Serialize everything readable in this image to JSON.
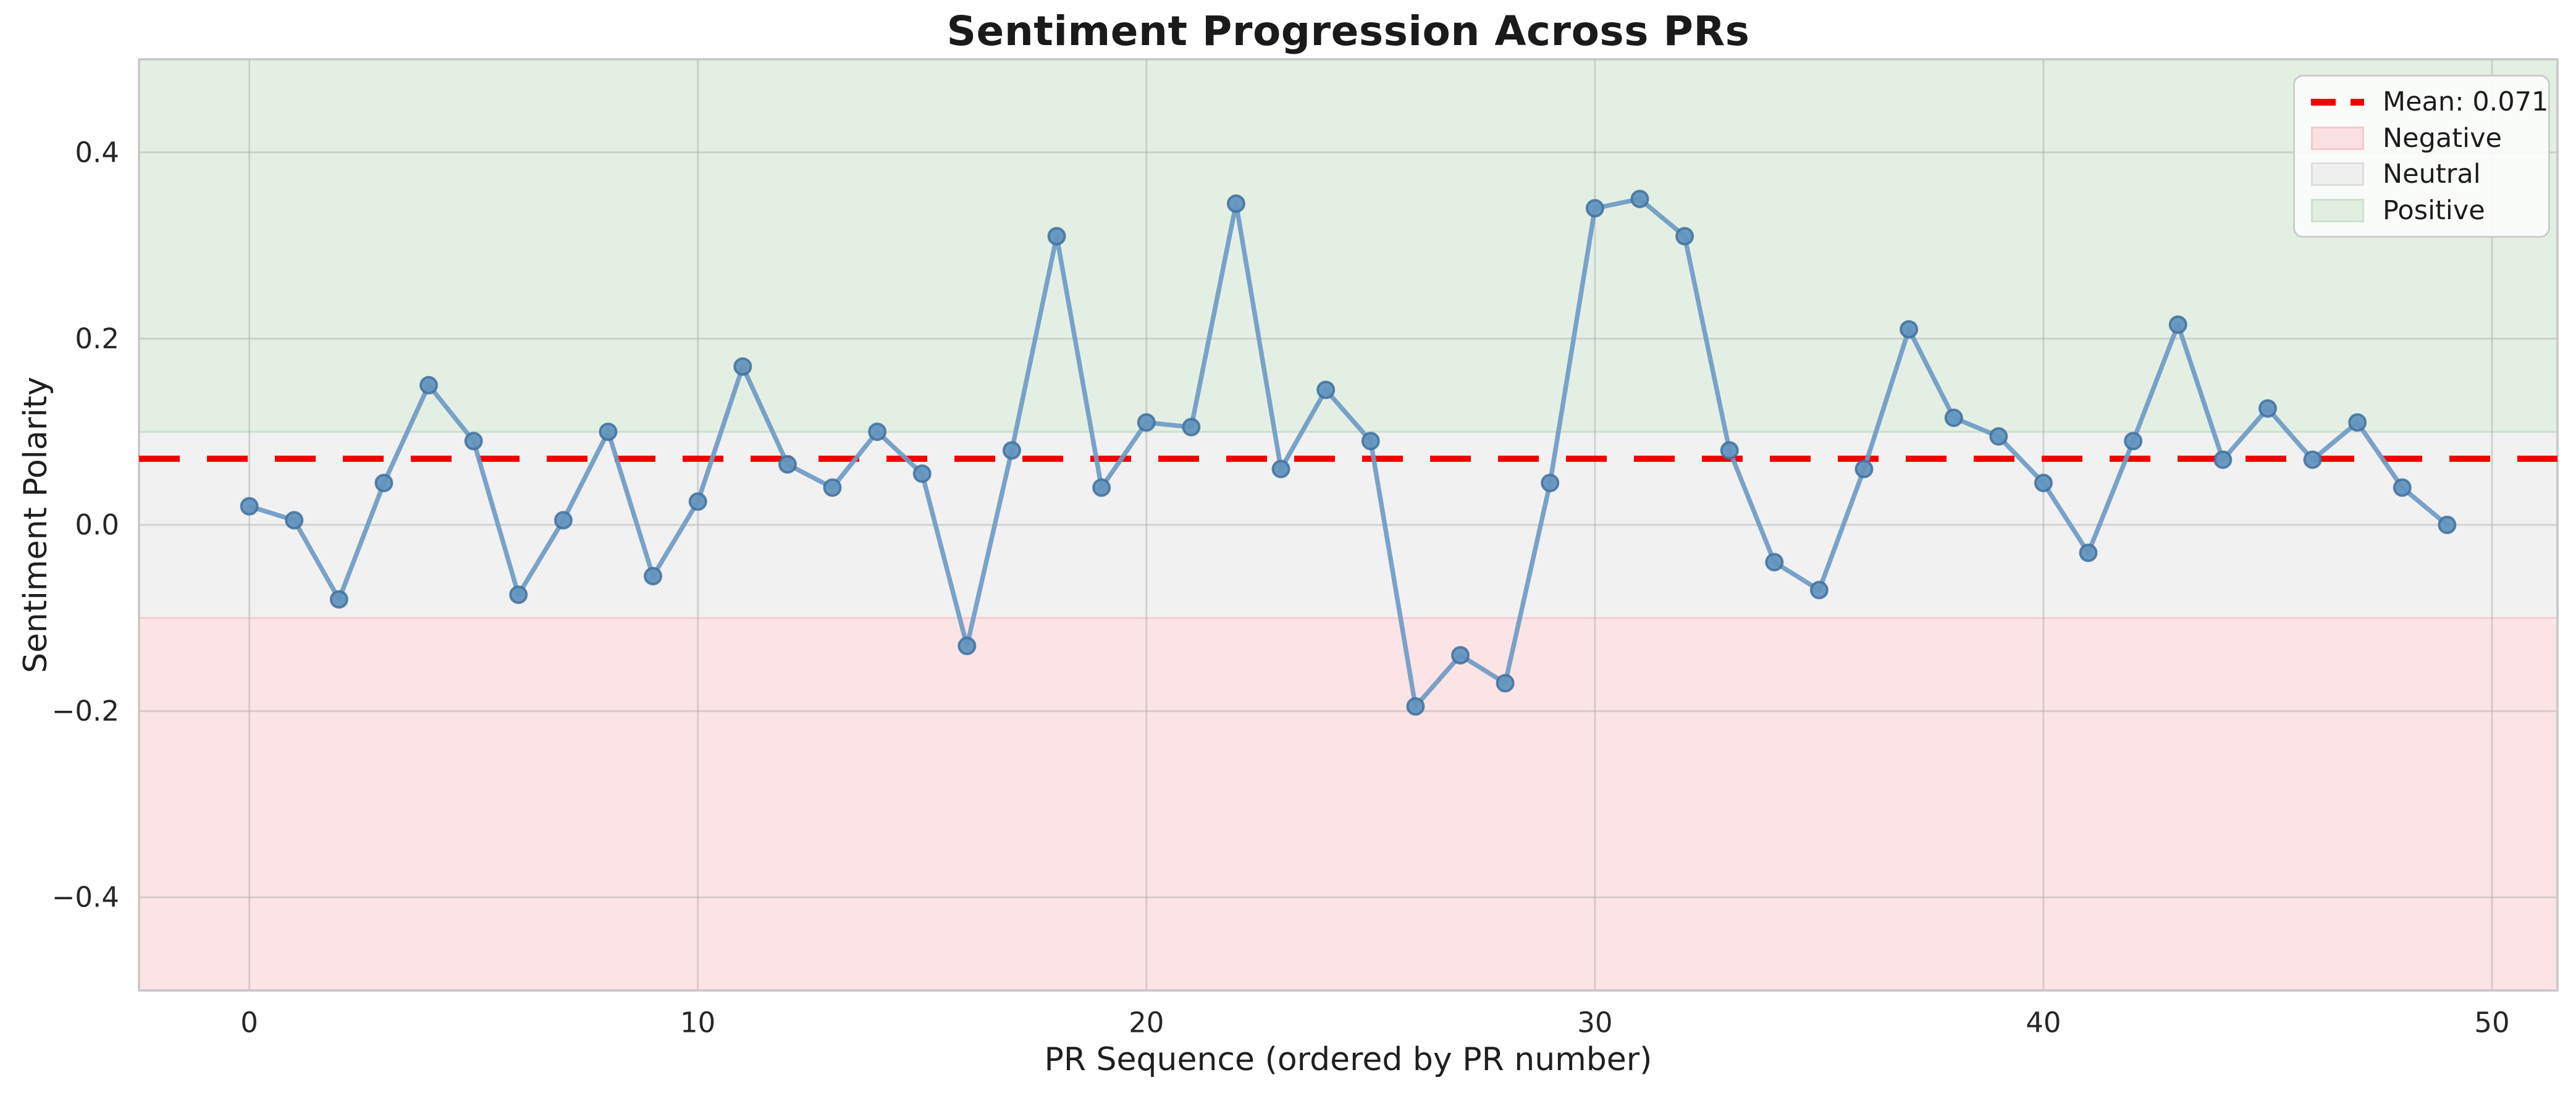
{
  "chart_data": {
    "type": "line",
    "title": "Sentiment Progression Across PRs",
    "xlabel": "PR Sequence (ordered by PR number)",
    "ylabel": "Sentiment Polarity",
    "x": [
      0,
      1,
      2,
      3,
      4,
      5,
      6,
      7,
      8,
      9,
      10,
      11,
      12,
      13,
      14,
      15,
      16,
      17,
      18,
      19,
      20,
      21,
      22,
      23,
      24,
      25,
      26,
      27,
      28,
      29,
      30,
      31,
      32,
      33,
      34,
      35,
      36,
      37,
      38,
      39,
      40,
      41,
      42,
      43,
      44,
      45,
      46,
      47,
      48,
      49
    ],
    "values": [
      0.02,
      0.005,
      -0.08,
      0.045,
      0.15,
      0.09,
      -0.075,
      0.005,
      0.1,
      -0.055,
      0.025,
      0.17,
      0.065,
      0.04,
      0.1,
      0.055,
      -0.13,
      0.08,
      0.31,
      0.04,
      0.11,
      0.105,
      0.345,
      0.06,
      0.145,
      0.09,
      -0.195,
      -0.14,
      -0.17,
      0.045,
      0.34,
      0.35,
      0.31,
      0.08,
      -0.04,
      -0.07,
      0.06,
      0.21,
      0.115,
      0.095,
      0.045,
      -0.03,
      0.09,
      0.215,
      0.07,
      0.125,
      0.07,
      0.11,
      0.04,
      0.0
    ],
    "mean": 0.071,
    "xlim": [
      -2.46,
      51.46
    ],
    "ylim": [
      -0.5,
      0.5
    ],
    "xticks": [
      0,
      10,
      20,
      30,
      40,
      50
    ],
    "yticks": [
      0.4,
      0.2,
      0.0,
      -0.2,
      -0.4
    ],
    "bands": {
      "positive": {
        "from": 0.1,
        "to": 0.5
      },
      "neutral": {
        "from": -0.1,
        "to": 0.1
      },
      "negative": {
        "from": -0.5,
        "to": -0.1
      }
    },
    "grid": true,
    "legend_position": "top-right",
    "legend": [
      {
        "label": "Mean: 0.071",
        "swatch": "dashed-line"
      },
      {
        "label": "Negative",
        "swatch": "negative-patch"
      },
      {
        "label": "Neutral",
        "swatch": "neutral-patch"
      },
      {
        "label": "Positive",
        "swatch": "positive-patch"
      }
    ],
    "colors": {
      "line": "#6e9bc5",
      "marker_fill": "#6295bf",
      "marker_edge": "#41719e",
      "mean_line": "#f20000",
      "positive_band": "#e4efe4",
      "neutral_band": "#f1f1f1",
      "negative_band": "#fce3e5",
      "positive_band_edge": "#cbe0cb",
      "negative_band_edge": "#f3cdd1",
      "grid": "#ababab",
      "spine": "#c6c6c6",
      "tick_text": "#262626"
    }
  }
}
